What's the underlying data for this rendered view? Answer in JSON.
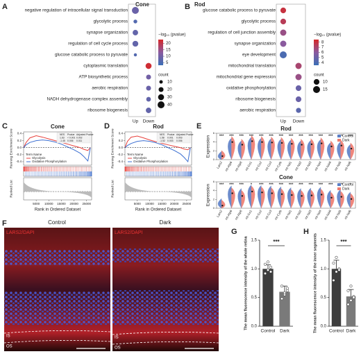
{
  "panel_labels": [
    "A",
    "B",
    "C",
    "D",
    "E",
    "F",
    "G",
    "H"
  ],
  "chart_data": [
    {
      "type": "dotplot",
      "title": "Cone",
      "categories": [
        "negative regulation of intracellular signal transduction",
        "glycolytic process",
        "synapse organization",
        "regulation of cell cycle process",
        "glucose catabolic process to pyruvate",
        "cytoplasmic translation",
        "ATP biosynthetic process",
        "aerobic respiration",
        "NADH dehydrogenase complex assembly",
        "ribosome biogenesis"
      ],
      "series": [
        {
          "name": "Up",
          "values": [
            9,
            6,
            8,
            8,
            6,
            null,
            null,
            null,
            null,
            null
          ],
          "sizes": [
            40,
            12,
            25,
            28,
            8,
            null,
            null,
            null,
            null,
            null
          ]
        },
        {
          "name": "Down",
          "values": [
            null,
            null,
            null,
            null,
            null,
            22,
            10,
            9,
            8,
            8
          ],
          "sizes": [
            null,
            null,
            null,
            null,
            null,
            30,
            20,
            20,
            18,
            25
          ]
        }
      ],
      "colors": [
        "#3b6fb6",
        "#8a5a9e",
        "#d62828"
      ],
      "color_title": "−log₁₀ (pvalue)",
      "colorlim": [
        3,
        23
      ],
      "colorticks": [
        20,
        15,
        10,
        5
      ],
      "size_title": "count",
      "size_ticks": [
        10,
        20,
        30,
        40
      ]
    },
    {
      "type": "dotplot",
      "title": "Rod",
      "categories": [
        "glucose catabolic process to pyruvate",
        "glycolytic process",
        "regulation of cell junction assembly",
        "synapse organization",
        "eye development",
        "mitochondrial translation",
        "mitochondrial gene expression",
        "oxidative phosphorylation",
        "ribosome biogenesis",
        "aerobic respiration"
      ],
      "series": [
        {
          "name": "Up",
          "values": [
            8,
            7.5,
            6.5,
            6,
            4,
            null,
            null,
            null,
            null,
            null
          ],
          "sizes": [
            10,
            10,
            12,
            12,
            15,
            null,
            null,
            null,
            null,
            null
          ]
        },
        {
          "name": "Down",
          "values": [
            null,
            null,
            null,
            null,
            null,
            7,
            6.5,
            5,
            5,
            4.5
          ],
          "sizes": [
            null,
            null,
            null,
            null,
            null,
            12,
            12,
            10,
            10,
            8
          ]
        }
      ],
      "colors": [
        "#3b6fb6",
        "#8a5a9e",
        "#d62828"
      ],
      "color_title": "−log₁₀ (pvalue)",
      "colorlim": [
        3.5,
        8.5
      ],
      "colorticks": [
        8,
        7,
        6,
        5,
        4
      ],
      "size_title": "count",
      "size_ticks": [
        10,
        15
      ]
    },
    {
      "type": "gsea",
      "title": "Cone",
      "ylabel": "Running Enrichment Score",
      "ylabel2": "Ranked List",
      "xlabel": "Rank in Ordered Dataset",
      "legend_title": "Term Name",
      "x": [
        0,
        1000,
        2500,
        5000,
        7500,
        10000,
        12500,
        15000,
        17500,
        20000,
        22500,
        24000,
        25500,
        26500
      ],
      "series": [
        {
          "name": "Glycolysis",
          "color": "#e8413c",
          "values": [
            0,
            0.15,
            0.28,
            0.34,
            0.3,
            0.25,
            0.2,
            0.15,
            0.1,
            0.05,
            0,
            -0.05,
            -0.08,
            0
          ]
        },
        {
          "name": "Oxidative Phosphorylation",
          "color": "#3c6fd1",
          "values": [
            0,
            0.08,
            0.15,
            0.2,
            0.22,
            0.2,
            0.16,
            0.1,
            0.02,
            -0.06,
            -0.16,
            -0.26,
            -0.38,
            0
          ]
        }
      ],
      "xlim": [
        0,
        27000
      ],
      "xticks": [
        5000,
        10000,
        15000,
        20000,
        25000
      ],
      "ylim": [
        -0.5,
        0.45
      ],
      "yticks": [
        -0.4,
        -0.2,
        {
          "value": 0,
          "label": "0.0"
        },
        0.2,
        0.4
      ],
      "table": {
        "header": [
          "NES",
          "Pvalue",
          "Adjusted Pvalue"
        ],
        "rows": [
          [
            "1.63",
            "< 0.001",
            "0.002"
          ],
          [
            "-1.45",
            "0.006",
            "0.011"
          ]
        ]
      }
    },
    {
      "type": "gsea",
      "title": "Rod",
      "ylabel": "Running Enrichment Score",
      "ylabel2": "Ranked List",
      "xlabel": "Rank in Ordered Dataset",
      "legend_title": "Term Name",
      "x": [
        0,
        1000,
        2500,
        5000,
        7500,
        10000,
        12500,
        15000,
        17500,
        20000,
        22500,
        24000,
        25500,
        26500
      ],
      "series": [
        {
          "name": "Glycolysis",
          "color": "#e8413c",
          "values": [
            0,
            0.18,
            0.3,
            0.33,
            0.28,
            0.22,
            0.17,
            0.12,
            0.08,
            0.04,
            0,
            -0.04,
            -0.06,
            0
          ]
        },
        {
          "name": "Oxidative Phosphorylation",
          "color": "#3c6fd1",
          "values": [
            0,
            0.06,
            0.12,
            0.18,
            0.2,
            0.18,
            0.14,
            0.08,
            0,
            -0.08,
            -0.18,
            -0.28,
            -0.4,
            0
          ]
        }
      ],
      "xlim": [
        0,
        27000
      ],
      "xticks": [
        5000,
        10000,
        15000,
        20000,
        25000
      ],
      "ylim": [
        -0.5,
        0.45
      ],
      "yticks": [
        -0.4,
        -0.2,
        {
          "value": 0,
          "label": "0.0"
        },
        0.2,
        0.4
      ],
      "table": {
        "header": [
          "NES",
          "Pvalue",
          "Adjusted Pvalue"
        ],
        "rows": [
          [
            "1.58",
            "0.001",
            "0.003"
          ],
          [
            "-1.52",
            "0.003",
            "0.006"
          ]
        ]
      }
    },
    {
      "type": "violin",
      "title": "Rod",
      "ylabel": "Expression",
      "categories": [
        "Lars2",
        "mt-Atp6",
        "mt-Atp8",
        "mt-Co1",
        "mt-Co2",
        "mt-Co3",
        "mt-Cytb",
        "mt-Nd1",
        "mt-Nd2",
        "mt-Nd3",
        "mt-Nd4",
        "mt-Nd4l",
        "mt-Nd5",
        "mt-Nd6"
      ],
      "series": [
        {
          "name": "Control",
          "color": "#5b7fc7",
          "values": [
            0.6,
            3.6,
            3.0,
            3.8,
            3.6,
            3.5,
            3.4,
            3.2,
            3.0,
            3.1,
            3.3,
            2.6,
            2.8,
            2.2
          ]
        },
        {
          "name": "Dark",
          "color": "#ee7b6e",
          "values": [
            0.8,
            4.0,
            3.4,
            4.2,
            4.0,
            3.9,
            3.8,
            3.6,
            3.4,
            3.5,
            3.7,
            3.0,
            3.2,
            2.5
          ]
        }
      ],
      "annotations": [
        "***",
        "***",
        "***",
        "***",
        "***",
        "***",
        "***",
        "***",
        "***",
        "***",
        "***",
        "***",
        "***",
        "***"
      ],
      "ylim": [
        0,
        6
      ],
      "yticks": [
        0,
        2,
        4,
        6
      ]
    },
    {
      "type": "violin",
      "title": "Cone",
      "ylabel": "Expression",
      "categories": [
        "Lars2",
        "mt-Atp6",
        "mt-Atp8",
        "mt-Co1",
        "mt-Co2",
        "mt-Co3",
        "mt-Cytb",
        "mt-Nd1",
        "mt-Nd2",
        "mt-Nd3",
        "mt-Nd4",
        "mt-Nd4l",
        "mt-Nd5",
        "mt-Nd6"
      ],
      "series": [
        {
          "name": "Control",
          "color": "#5b7fc7",
          "values": [
            0.9,
            3.8,
            3.2,
            4.0,
            3.9,
            3.8,
            3.6,
            3.4,
            3.2,
            3.3,
            3.5,
            2.8,
            3.0,
            2.4
          ]
        },
        {
          "name": "Dark",
          "color": "#ee7b6e",
          "values": [
            0.6,
            3.4,
            2.8,
            3.8,
            3.6,
            3.4,
            3.2,
            3.0,
            2.8,
            2.9,
            3.1,
            2.4,
            2.6,
            2.1
          ]
        }
      ],
      "annotations": [
        "***",
        "***",
        "***",
        "*",
        "***",
        "***",
        "***",
        "***",
        "***",
        "***",
        "***",
        "***",
        "***",
        "*"
      ],
      "ylim": [
        0,
        6
      ],
      "yticks": [
        0,
        2,
        4,
        6
      ]
    },
    {
      "type": "bar",
      "ylabel": "The mean fluorescence intensity of the whole retina",
      "categories": [
        "Control",
        "Dark"
      ],
      "values": [
        1.0,
        0.6
      ],
      "errors": [
        0.07,
        0.1
      ],
      "points": [
        [
          0.92,
          0.98,
          1.03,
          1.08,
          1.12,
          0.95
        ],
        [
          0.48,
          0.55,
          0.62,
          0.7,
          0.58,
          0.66
        ]
      ],
      "colors": [
        "#3d3d3d",
        "#7a7a7a"
      ],
      "annotation": "***",
      "ylim": [
        0,
        1.5
      ],
      "yticks": [
        {
          "value": 0,
          "label": "0.0"
        },
        0.5,
        {
          "value": 1,
          "label": "1.0"
        },
        1.5
      ]
    },
    {
      "type": "bar",
      "ylabel": "The mean fluorescence intensity of the inner segments",
      "categories": [
        "Control",
        "Dark"
      ],
      "values": [
        1.0,
        0.52
      ],
      "errors": [
        0.15,
        0.12
      ],
      "points": [
        [
          0.8,
          0.95,
          1.0,
          1.1,
          1.2,
          0.98
        ],
        [
          0.38,
          0.45,
          0.52,
          0.62,
          0.7,
          0.5
        ]
      ],
      "colors": [
        "#3d3d3d",
        "#7a7a7a"
      ],
      "annotation": "***",
      "ylim": [
        0,
        1.5
      ],
      "yticks": [
        {
          "value": 0,
          "label": "0.0"
        },
        0.5,
        {
          "value": 1,
          "label": "1.0"
        },
        1.5
      ]
    }
  ],
  "image_panel": {
    "columns": [
      {
        "title": "Control",
        "stain": "LARS2/DAPI",
        "layers": [
          "IS",
          "OS"
        ]
      },
      {
        "title": "Dark",
        "stain": "LARS2/DAPI",
        "layers": [
          "IS",
          "OS"
        ]
      }
    ]
  }
}
